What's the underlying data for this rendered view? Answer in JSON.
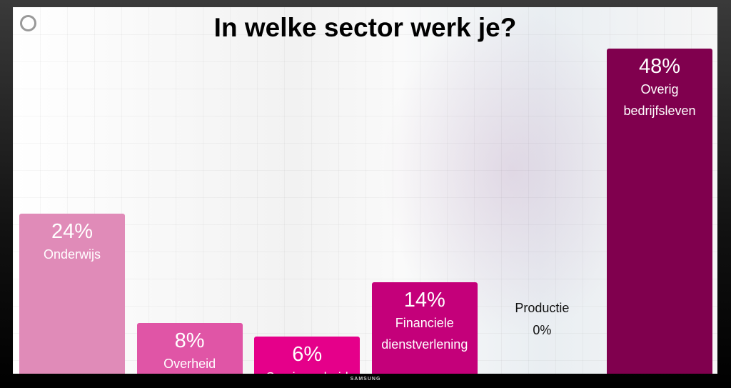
{
  "brand": "SAMSUNG",
  "chart_data": {
    "type": "bar",
    "title": "In welke sector werk je?",
    "categories": [
      "Onderwijs",
      "Overheid",
      "Semi overheid",
      "Financiele dienstverlening",
      "Productie",
      "Overig bedrijfsleven"
    ],
    "values": [
      24,
      8,
      6,
      14,
      0,
      48
    ],
    "value_labels": [
      "24%",
      "8%",
      "6%",
      "14%",
      "0%",
      "48%"
    ],
    "colors": [
      "#e08bb8",
      "#e055a6",
      "#e5008a",
      "#c4007a",
      "#b0006c",
      "#80004e"
    ],
    "ylim": [
      0,
      48
    ],
    "grid": false,
    "legend": "none"
  }
}
